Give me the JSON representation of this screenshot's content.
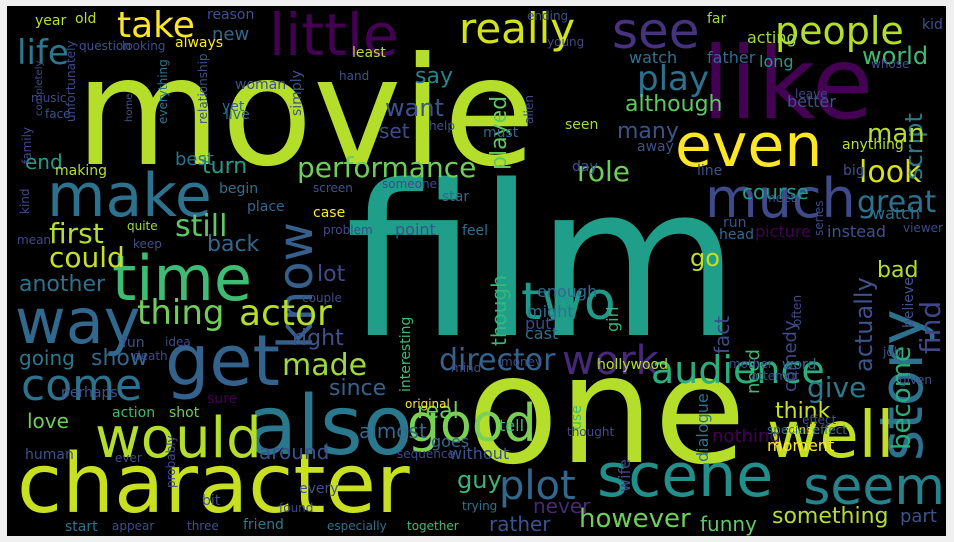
{
  "words": [
    "movie",
    "film",
    "one",
    "character",
    "like",
    "also",
    "would",
    "make",
    "time",
    "way",
    "get",
    "even",
    "story",
    "scene",
    "well",
    "seem",
    "much",
    "see",
    "little",
    "really",
    "people",
    "take",
    "know",
    "good",
    "two",
    "come",
    "life",
    "play",
    "work",
    "audience",
    "thing",
    "actor",
    "performance",
    "plot",
    "however",
    "director",
    "made",
    "look",
    "role",
    "great",
    "could",
    "first",
    "still",
    "find",
    "go",
    "give",
    "become",
    "world",
    "end",
    "script",
    "many",
    "man",
    "although",
    "want",
    "say",
    "played",
    "set",
    "turn",
    "course",
    "back",
    "lot",
    "actually",
    "bad",
    "fact",
    "though",
    "another",
    "show",
    "going",
    "right",
    "since",
    "love",
    "think",
    "real",
    "almost",
    "around",
    "guy",
    "never",
    "rather",
    "something",
    "funny",
    "part",
    "best",
    "new",
    "acting",
    "father",
    "watch",
    "long",
    "better",
    "watch",
    "picture",
    "instead",
    "girl",
    "enough",
    "might",
    "cast",
    "put",
    "need",
    "comedy",
    "nothing",
    "moment",
    "wife",
    "dialogue",
    "without",
    "tell",
    "goes",
    "use",
    "hollywood",
    "old",
    "year",
    "kid",
    "far",
    "always",
    "reason",
    "looking",
    "question",
    "least",
    "hand",
    "woman",
    "yet",
    "simply",
    "live",
    "seen",
    "help",
    "away",
    "must",
    "alien",
    "day",
    "star",
    "point",
    "feel",
    "problem",
    "case",
    "quite",
    "keep",
    "fun",
    "idea",
    "death",
    "mind",
    "money",
    "mother",
    "word",
    "attempt",
    "given",
    "job",
    "believe",
    "sure",
    "original",
    "thought",
    "sense",
    "special effect",
    "human",
    "ever",
    "every",
    "found",
    "trying",
    "together",
    "especially",
    "friend",
    "three",
    "start",
    "appear",
    "bit",
    "probably",
    "action",
    "shot",
    "perhaps",
    "everything",
    "making",
    "relationship",
    "face",
    "unfortunately",
    "music",
    "family",
    "completely",
    "kind",
    "mean",
    "home",
    "ending",
    "young",
    "whose",
    "leave",
    "anything",
    "series",
    "run",
    "head",
    "viewer",
    "often",
    "meet",
    "line",
    "big",
    "someone",
    "screen",
    "begin",
    "place",
    "sequence",
    "couple",
    "interesting",
    "effect"
  ]
}
